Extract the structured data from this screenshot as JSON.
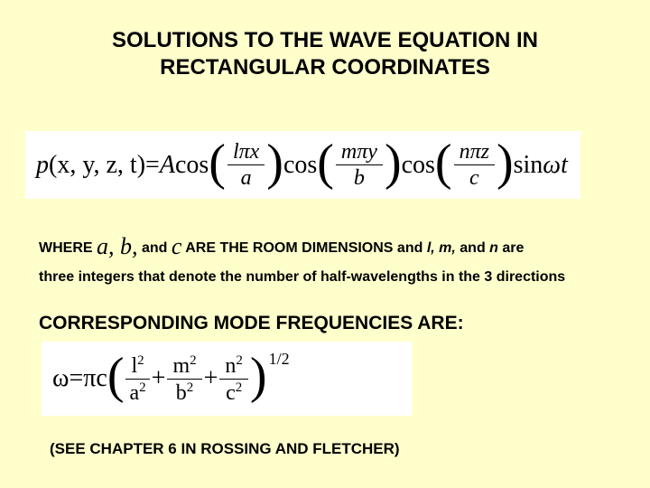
{
  "background_color": "#ffffcc",
  "equation_box_color": "#ffffff",
  "title": {
    "line1": "SOLUTIONS TO THE WAVE EQUATION IN",
    "line2": "RECTANGULAR COORDINATES",
    "fontsize": 24
  },
  "equation1": {
    "lhs_p": "p",
    "lhs_args": "(x, y, z, t)",
    "eq": " = ",
    "A": "A",
    "cos": " cos",
    "frac1_num": "lπx",
    "frac1_den": "a",
    "frac2_num": "mπy",
    "frac2_den": "b",
    "frac3_num": "nπz",
    "frac3_den": "c",
    "sin": " sin ",
    "omega_t": "ωt"
  },
  "where": {
    "prefix": "WHERE  ",
    "abc": "a, b,",
    "and": " and ",
    "c": "c",
    "mid": " ARE  THE ROOM DIMENSIONS  and ",
    "l": "l,",
    "m": " m,",
    "and2": " and ",
    "n": "n",
    "suffix": " are"
  },
  "three_line": "three integers that denote the number of half-wavelengths in the 3 directions",
  "mode_heading": "CORRESPONDING MODE FREQUENCIES ARE:",
  "equation2": {
    "omega": "ω",
    "eq": " = ",
    "pi_c": "πc ",
    "t1_num_base": "l",
    "t1_den_base": "a",
    "t2_num_base": "m",
    "t2_den_base": "b",
    "t3_num_base": "n",
    "t3_den_base": "c",
    "sq": "2",
    "plus": " + ",
    "exp": "1/2"
  },
  "reference": "(SEE CHAPTER 6 IN ROSSING AND FLETCHER)"
}
